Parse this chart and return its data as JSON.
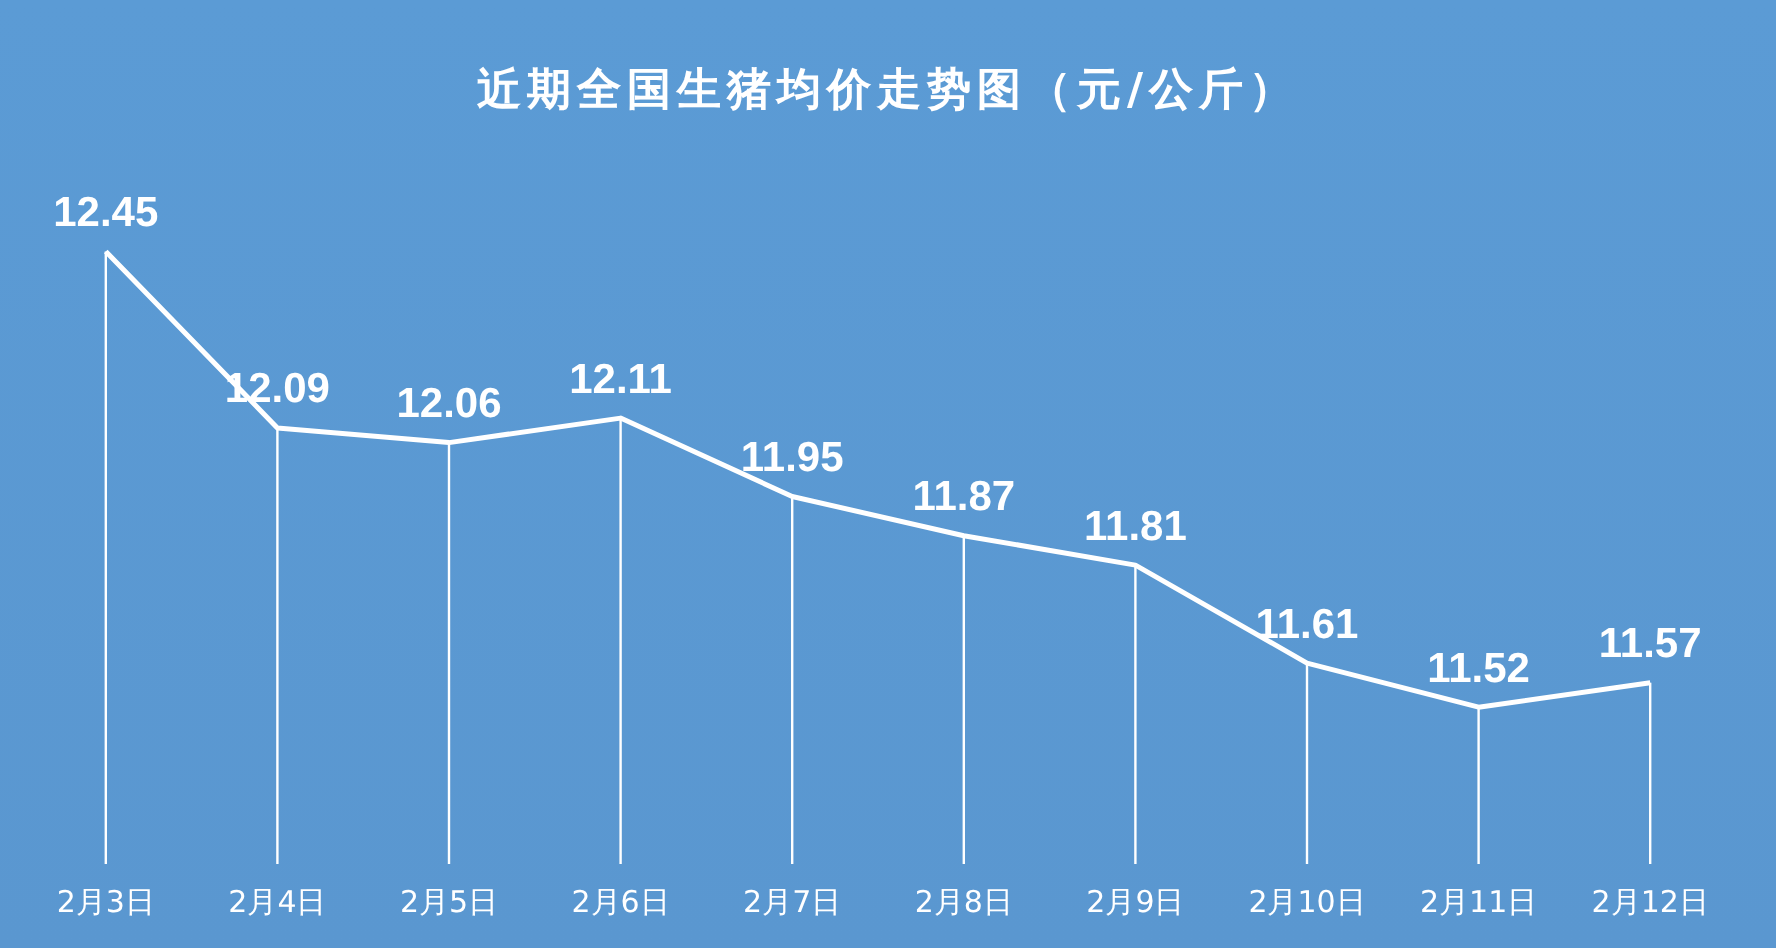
{
  "chart_data": {
    "type": "line",
    "title": "近期全国生猪均价走势图（元/公斤）",
    "categories": [
      "2月3日",
      "2月4日",
      "2月5日",
      "2月6日",
      "2月7日",
      "2月8日",
      "2月9日",
      "2月10日",
      "2月11日",
      "2月12日"
    ],
    "series": [
      {
        "color": "#ffffff",
        "values": [
          12.45,
          12.09,
          12.06,
          12.11,
          11.95,
          11.87,
          11.81,
          11.61,
          11.52,
          11.57
        ]
      }
    ],
    "tick_labels": "x",
    "data_labels": true,
    "grid": "x",
    "line_style": "solid"
  }
}
